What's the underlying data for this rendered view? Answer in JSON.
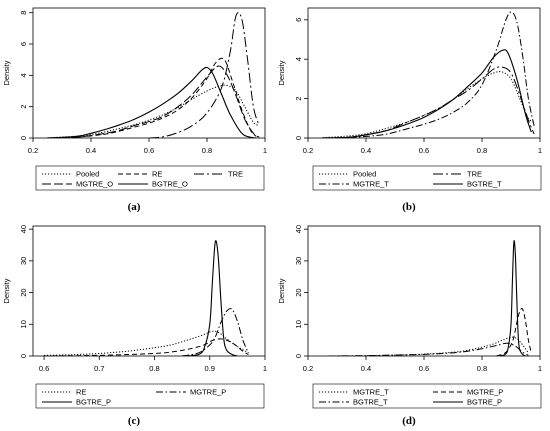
{
  "chart_data": [
    {
      "type": "line",
      "panel_label": "(a)",
      "ylabel": "Density",
      "xlim": [
        0.2,
        1.0
      ],
      "ylim": [
        0,
        8.3
      ],
      "xticks": [
        "0.2",
        "0.4",
        "0.6",
        "0.8",
        "1"
      ],
      "yticks": [
        "0",
        "2",
        "4",
        "6",
        "8"
      ],
      "legend_position": "below",
      "series": [
        {
          "name": "Pooled",
          "style": "dotted",
          "x": [
            0.25,
            0.3,
            0.35,
            0.4,
            0.45,
            0.5,
            0.55,
            0.6,
            0.65,
            0.7,
            0.75,
            0.8,
            0.84,
            0.87,
            0.9,
            0.93,
            0.96,
            0.98
          ],
          "y": [
            0.02,
            0.06,
            0.12,
            0.22,
            0.4,
            0.62,
            0.85,
            1.15,
            1.5,
            1.95,
            2.5,
            3.0,
            3.3,
            3.35,
            3.0,
            2.0,
            1.0,
            0.8
          ]
        },
        {
          "name": "RE",
          "style": "dash",
          "x": [
            0.25,
            0.35,
            0.45,
            0.5,
            0.55,
            0.6,
            0.65,
            0.7,
            0.75,
            0.8,
            0.83,
            0.86,
            0.89,
            0.92,
            0.95,
            0.97
          ],
          "y": [
            0.0,
            0.05,
            0.25,
            0.45,
            0.7,
            0.95,
            1.3,
            1.8,
            2.6,
            3.8,
            4.8,
            5.0,
            3.5,
            1.8,
            0.5,
            0.1
          ]
        },
        {
          "name": "TRE",
          "style": "dashdot-long",
          "x": [
            0.6,
            0.65,
            0.7,
            0.75,
            0.8,
            0.85,
            0.88,
            0.9,
            0.92,
            0.94,
            0.96,
            0.98
          ],
          "y": [
            0.0,
            0.08,
            0.35,
            0.8,
            1.6,
            3.2,
            5.5,
            7.8,
            7.6,
            5.0,
            2.0,
            0.8
          ]
        },
        {
          "name": "MGTRE_O",
          "style": "longdash",
          "x": [
            0.25,
            0.35,
            0.45,
            0.5,
            0.55,
            0.6,
            0.65,
            0.7,
            0.75,
            0.8,
            0.84,
            0.87,
            0.9,
            0.93,
            0.96,
            0.98
          ],
          "y": [
            0.0,
            0.05,
            0.3,
            0.5,
            0.8,
            1.05,
            1.4,
            2.0,
            2.8,
            3.9,
            4.6,
            4.0,
            2.7,
            1.2,
            0.3,
            0.05
          ]
        },
        {
          "name": "BGTRE_O",
          "style": "solid",
          "x": [
            0.25,
            0.35,
            0.4,
            0.45,
            0.5,
            0.55,
            0.6,
            0.65,
            0.7,
            0.75,
            0.78,
            0.8,
            0.82,
            0.85,
            0.88,
            0.92,
            0.95,
            0.97
          ],
          "y": [
            0.0,
            0.1,
            0.3,
            0.55,
            0.85,
            1.2,
            1.65,
            2.2,
            2.85,
            3.7,
            4.3,
            4.5,
            4.1,
            2.8,
            1.5,
            0.3,
            0.05,
            0.0
          ]
        }
      ]
    },
    {
      "type": "line",
      "panel_label": "(b)",
      "ylabel": "Density",
      "xlim": [
        0.2,
        1.0
      ],
      "ylim": [
        0,
        6.6
      ],
      "xticks": [
        "0.2",
        "0.4",
        "0.6",
        "0.8",
        "1"
      ],
      "yticks": [
        "0",
        "2",
        "4",
        "6"
      ],
      "legend_position": "below",
      "series": [
        {
          "name": "Pooled",
          "style": "dotted",
          "x": [
            0.25,
            0.3,
            0.35,
            0.4,
            0.45,
            0.5,
            0.55,
            0.6,
            0.65,
            0.7,
            0.75,
            0.8,
            0.84,
            0.87,
            0.9,
            0.93,
            0.96,
            0.98
          ],
          "y": [
            0.02,
            0.06,
            0.12,
            0.22,
            0.4,
            0.62,
            0.85,
            1.15,
            1.5,
            1.95,
            2.5,
            3.0,
            3.3,
            3.35,
            3.0,
            2.0,
            1.0,
            0.8
          ]
        },
        {
          "name": "TRE",
          "style": "dashdot-long",
          "x": [
            0.25,
            0.35,
            0.45,
            0.5,
            0.55,
            0.6,
            0.65,
            0.7,
            0.75,
            0.8,
            0.84,
            0.87,
            0.9,
            0.93,
            0.96,
            0.98
          ],
          "y": [
            0.0,
            0.05,
            0.3,
            0.55,
            0.85,
            1.15,
            1.5,
            1.95,
            2.4,
            3.0,
            3.5,
            3.6,
            3.3,
            2.2,
            0.9,
            0.2
          ]
        },
        {
          "name": "MGTRE_T",
          "style": "dashdot",
          "x": [
            0.25,
            0.35,
            0.45,
            0.5,
            0.55,
            0.6,
            0.65,
            0.7,
            0.75,
            0.8,
            0.85,
            0.88,
            0.9,
            0.92,
            0.94,
            0.96,
            0.98
          ],
          "y": [
            0.0,
            0.03,
            0.15,
            0.3,
            0.5,
            0.7,
            0.95,
            1.3,
            1.8,
            2.7,
            4.5,
            5.9,
            6.4,
            5.9,
            4.2,
            2.0,
            0.6
          ]
        },
        {
          "name": "BGTRE_T",
          "style": "solid",
          "x": [
            0.25,
            0.35,
            0.45,
            0.5,
            0.55,
            0.6,
            0.65,
            0.7,
            0.75,
            0.8,
            0.84,
            0.87,
            0.89,
            0.92,
            0.95,
            0.97
          ],
          "y": [
            0.0,
            0.05,
            0.3,
            0.5,
            0.75,
            1.05,
            1.45,
            1.95,
            2.6,
            3.3,
            4.1,
            4.45,
            4.3,
            3.0,
            1.2,
            0.3
          ]
        }
      ]
    },
    {
      "type": "line",
      "panel_label": "(c)",
      "ylabel": "Density",
      "xlim": [
        0.58,
        1.0
      ],
      "ylim": [
        0,
        41
      ],
      "xticks": [
        "0.6",
        "0.7",
        "0.8",
        "0.9",
        "1"
      ],
      "yticks": [
        "0",
        "10",
        "20",
        "30",
        "40"
      ],
      "legend_position": "below",
      "series": [
        {
          "name": "RE",
          "style": "dotted",
          "x": [
            0.6,
            0.65,
            0.7,
            0.75,
            0.8,
            0.83,
            0.85,
            0.87,
            0.89,
            0.9,
            0.91,
            0.92,
            0.93,
            0.95,
            0.97
          ],
          "y": [
            0.2,
            0.4,
            0.8,
            1.5,
            2.6,
            3.5,
            4.5,
            5.6,
            6.8,
            7.6,
            7.8,
            7.0,
            5.5,
            3.0,
            1.0
          ]
        },
        {
          "name": "MGTRE_P",
          "style": "dashdot",
          "x": [
            0.85,
            0.88,
            0.9,
            0.91,
            0.92,
            0.93,
            0.94,
            0.95,
            0.96,
            0.97
          ],
          "y": [
            0.0,
            1.0,
            3.5,
            6.0,
            10.5,
            14.0,
            14.8,
            11.0,
            5.0,
            1.0
          ]
        },
        {
          "name": "BGTRE_P",
          "style": "solid",
          "x": [
            0.86,
            0.88,
            0.89,
            0.9,
            0.905,
            0.91,
            0.915,
            0.92,
            0.925,
            0.93,
            0.94,
            0.95
          ],
          "y": [
            0.0,
            0.5,
            2.5,
            10.0,
            24.0,
            36.0,
            32.0,
            18.0,
            6.0,
            2.0,
            0.5,
            0.0
          ]
        },
        {
          "name": "",
          "style": "dash",
          "x": [
            0.6,
            0.7,
            0.8,
            0.84,
            0.87,
            0.89,
            0.9,
            0.91,
            0.92,
            0.93,
            0.94,
            0.95,
            0.96,
            0.97
          ],
          "y": [
            0.0,
            0.2,
            0.8,
            1.5,
            2.5,
            3.5,
            4.5,
            5.2,
            5.4,
            5.0,
            4.2,
            3.0,
            1.5,
            0.5
          ]
        }
      ]
    },
    {
      "type": "line",
      "panel_label": "(d)",
      "ylabel": "Density",
      "xlim": [
        0.2,
        1.0
      ],
      "ylim": [
        0,
        41
      ],
      "xticks": [
        "0.2",
        "0.4",
        "0.6",
        "0.8",
        "1"
      ],
      "yticks": [
        "0",
        "10",
        "20",
        "30",
        "40"
      ],
      "legend_position": "below",
      "series": [
        {
          "name": "MGTRE_T",
          "style": "dotted",
          "x": [
            0.27,
            0.4,
            0.5,
            0.6,
            0.7,
            0.75,
            0.8,
            0.84,
            0.87,
            0.9,
            0.92,
            0.94,
            0.96
          ],
          "y": [
            0.0,
            0.1,
            0.3,
            0.6,
            1.2,
            1.8,
            2.8,
            3.8,
            5.0,
            5.9,
            5.5,
            3.5,
            1.0
          ]
        },
        {
          "name": "MGTRE_P",
          "style": "dash",
          "x": [
            0.85,
            0.88,
            0.9,
            0.91,
            0.92,
            0.93,
            0.94,
            0.95,
            0.96,
            0.97
          ],
          "y": [
            0.0,
            1.0,
            3.5,
            6.0,
            10.5,
            14.0,
            14.8,
            11.0,
            5.0,
            1.0
          ]
        },
        {
          "name": "BGTRE_T",
          "style": "dashdot",
          "x": [
            0.27,
            0.4,
            0.5,
            0.6,
            0.7,
            0.75,
            0.8,
            0.85,
            0.88,
            0.9,
            0.92,
            0.94,
            0.96
          ],
          "y": [
            0.0,
            0.1,
            0.3,
            0.5,
            1.0,
            1.5,
            2.3,
            3.3,
            4.0,
            3.8,
            2.8,
            1.2,
            0.2
          ]
        },
        {
          "name": "BGTRE_P",
          "style": "solid",
          "x": [
            0.86,
            0.88,
            0.89,
            0.9,
            0.905,
            0.91,
            0.915,
            0.92,
            0.925,
            0.93,
            0.94,
            0.95
          ],
          "y": [
            0.0,
            0.5,
            2.5,
            10.0,
            24.0,
            36.0,
            32.0,
            18.0,
            6.0,
            2.0,
            0.5,
            0.0
          ]
        }
      ]
    }
  ]
}
